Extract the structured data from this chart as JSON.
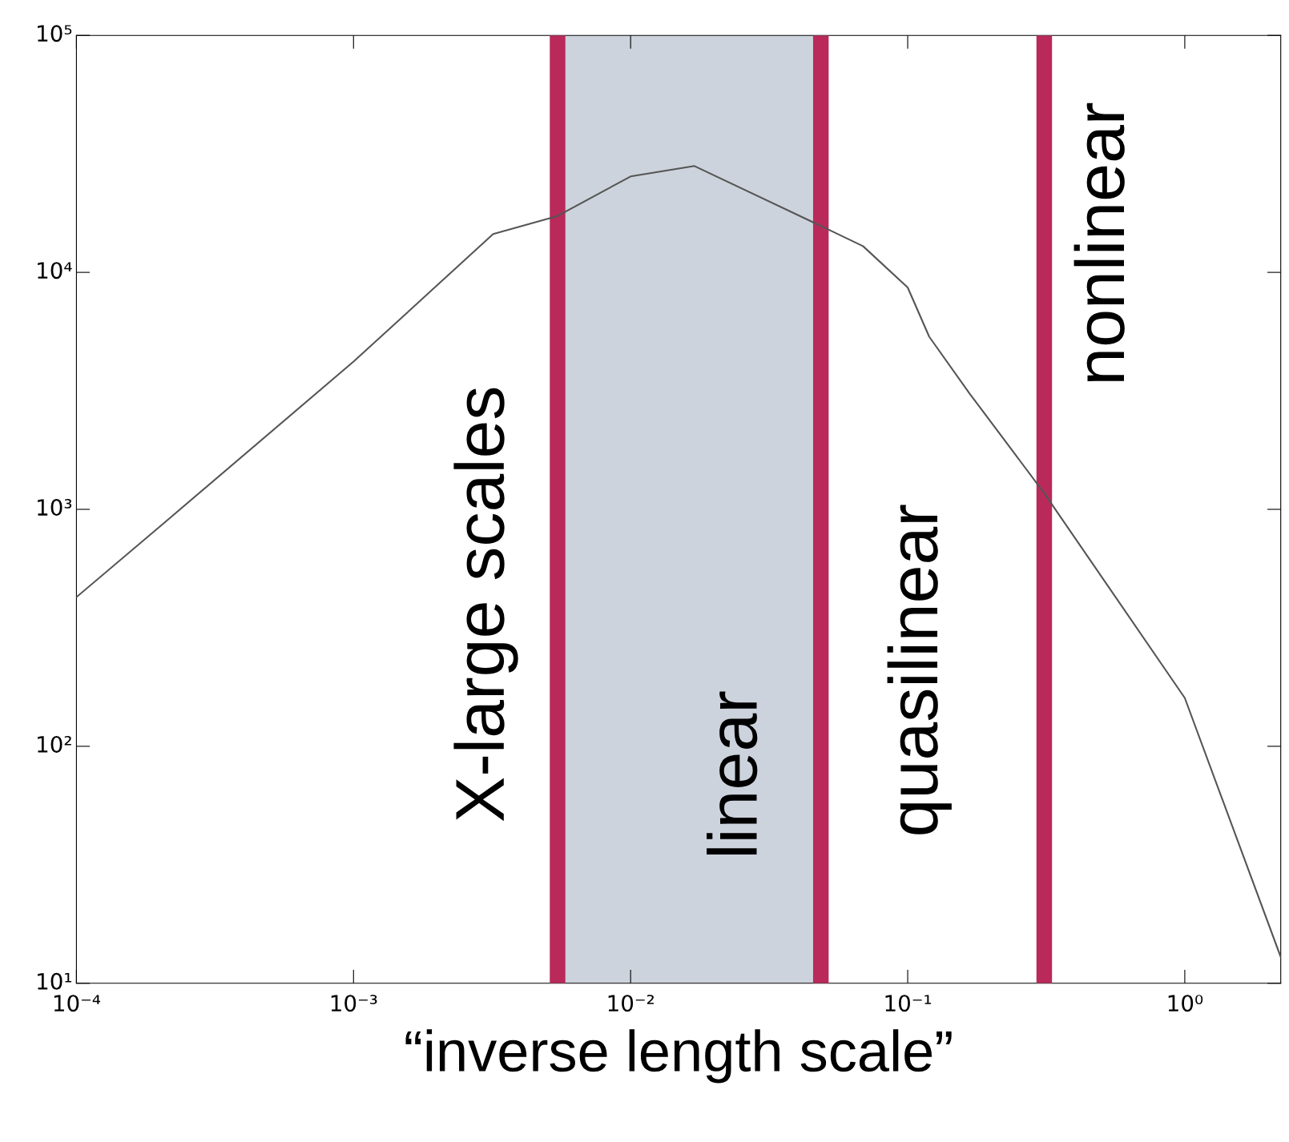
{
  "chart_data": {
    "type": "line",
    "xlabel": "“inverse length scale”",
    "x": [
      0.0001,
      0.000208,
      0.001,
      0.00319,
      0.00545,
      0.01,
      0.017,
      0.0486,
      0.069,
      0.1,
      0.1196,
      0.168,
      0.311,
      1,
      2.22
    ],
    "series": [
      {
        "color": "#555555",
        "values": [
          426,
          880,
          4200,
          14500,
          17300,
          25400,
          28100,
          15700,
          12900,
          8630,
          5350,
          3060,
          1170,
          160,
          12.9
        ]
      }
    ],
    "log": "xy",
    "xlim": [
      0.0001,
      2.22
    ],
    "ylim": [
      10,
      100000
    ],
    "xticks": [
      {
        "value": 0.0001,
        "label": "10⁻⁴"
      },
      {
        "value": 0.001,
        "label": "10⁻³"
      },
      {
        "value": 0.01,
        "label": "10⁻²"
      },
      {
        "value": 0.1,
        "label": "10⁻¹"
      },
      {
        "value": 1,
        "label": "10⁰"
      }
    ],
    "yticks": [
      {
        "value": 10,
        "label": "10¹"
      },
      {
        "value": 100,
        "label": "10²"
      },
      {
        "value": 1000,
        "label": "10³"
      },
      {
        "value": 10000,
        "label": "10⁴"
      },
      {
        "value": 100000,
        "label": "10⁵"
      }
    ],
    "bands": [
      {
        "axis": "x",
        "from": 0.00545,
        "to": 0.0486,
        "color": "#cdd3dc"
      }
    ],
    "ref_lines": [
      {
        "axis": "x",
        "value": 0.00545,
        "color": "#b92a5a"
      },
      {
        "axis": "x",
        "value": 0.0486,
        "color": "#b92a5a"
      },
      {
        "axis": "x",
        "value": 0.311,
        "color": "#b92a5a"
      }
    ],
    "annotations": [
      "X-large scales",
      "linear",
      "quasilinear",
      "nonlinear"
    ],
    "grid": false,
    "legend": false
  }
}
